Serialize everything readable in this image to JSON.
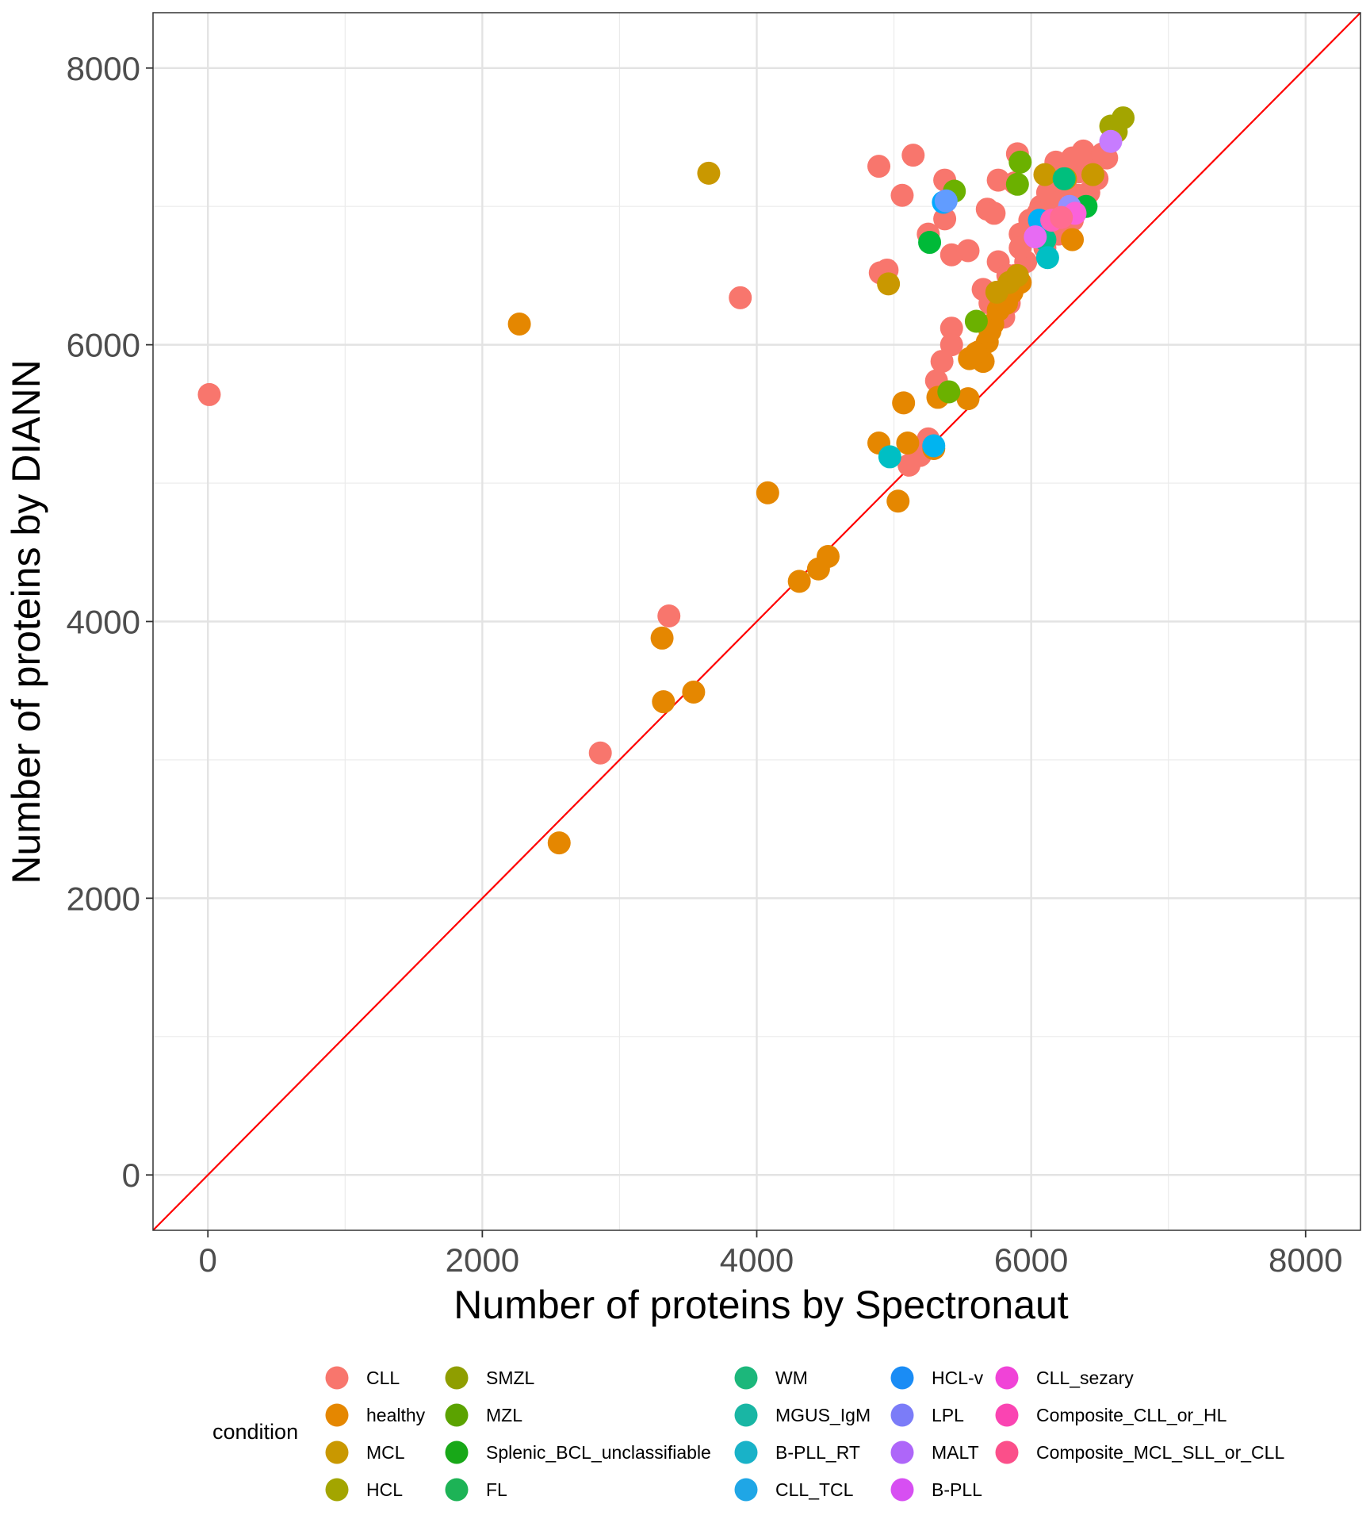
{
  "chart_data": {
    "type": "scatter",
    "xlabel": "Number of proteins by Spectronaut",
    "ylabel": "Number of proteins by DIANN",
    "xlim": [
      -400,
      8400
    ],
    "ylim": [
      -400,
      8400
    ],
    "x_ticks": [
      0,
      2000,
      4000,
      6000,
      8000
    ],
    "y_ticks": [
      0,
      2000,
      4000,
      6000,
      8000
    ],
    "x_tick_labels": [
      "0",
      "2000",
      "4000",
      "6000",
      "8000"
    ],
    "y_tick_labels": [
      "0",
      "2000",
      "4000",
      "6000",
      "8000"
    ],
    "grid": true,
    "reference_line": {
      "type": "identity",
      "color": "#ff0000"
    },
    "legend": {
      "title": "condition",
      "position": "bottom"
    },
    "series": [
      {
        "name": "CLL",
        "color": "#F8766D",
        "points": [
          [
            10,
            5640
          ],
          [
            2860,
            3050
          ],
          [
            3360,
            4040
          ],
          [
            3880,
            6340
          ],
          [
            4890,
            7290
          ],
          [
            5140,
            7370
          ],
          [
            4900,
            6520
          ],
          [
            4950,
            6540
          ],
          [
            5060,
            7080
          ],
          [
            5370,
            7190
          ],
          [
            5250,
            6800
          ],
          [
            5370,
            6910
          ],
          [
            5420,
            6650
          ],
          [
            5420,
            6120
          ],
          [
            5540,
            6680
          ],
          [
            5420,
            6000
          ],
          [
            5350,
            5880
          ],
          [
            5310,
            5740
          ],
          [
            5250,
            5320
          ],
          [
            5110,
            5130
          ],
          [
            5190,
            5200
          ],
          [
            5680,
            6980
          ],
          [
            5730,
            6950
          ],
          [
            5760,
            7190
          ],
          [
            5880,
            7170
          ],
          [
            5900,
            7380
          ],
          [
            5760,
            6600
          ],
          [
            5830,
            6500
          ],
          [
            5700,
            6300
          ],
          [
            5650,
            6400
          ],
          [
            5920,
            6800
          ],
          [
            5990,
            6900
          ],
          [
            6070,
            7000
          ],
          [
            6120,
            7100
          ],
          [
            6180,
            7320
          ],
          [
            6300,
            7350
          ],
          [
            6380,
            7400
          ],
          [
            6450,
            7300
          ],
          [
            6420,
            7100
          ],
          [
            6300,
            6900
          ],
          [
            6200,
            6800
          ],
          [
            6100,
            6700
          ],
          [
            5960,
            6600
          ],
          [
            5880,
            6500
          ],
          [
            5840,
            6300
          ],
          [
            5800,
            6200
          ],
          [
            6000,
            6850
          ],
          [
            6050,
            6950
          ],
          [
            6150,
            7050
          ],
          [
            6250,
            7150
          ],
          [
            6350,
            7250
          ],
          [
            6550,
            7350
          ],
          [
            5920,
            6700
          ],
          [
            6040,
            6780
          ],
          [
            6160,
            6880
          ],
          [
            6260,
            6980
          ],
          [
            6340,
            7080
          ],
          [
            6480,
            7200
          ],
          [
            6520,
            7380
          ]
        ]
      },
      {
        "name": "healthy",
        "color": "#E58700",
        "points": [
          [
            2270,
            6150
          ],
          [
            2560,
            2400
          ],
          [
            3310,
            3880
          ],
          [
            3320,
            3420
          ],
          [
            3540,
            3490
          ],
          [
            4080,
            4930
          ],
          [
            4310,
            4290
          ],
          [
            4450,
            4380
          ],
          [
            4520,
            4470
          ],
          [
            4890,
            5290
          ],
          [
            5030,
            4870
          ],
          [
            5070,
            5580
          ],
          [
            5100,
            5290
          ],
          [
            5290,
            5250
          ],
          [
            5320,
            5620
          ],
          [
            5540,
            5610
          ],
          [
            5550,
            5900
          ],
          [
            5620,
            5950
          ],
          [
            5680,
            6020
          ],
          [
            5720,
            6150
          ],
          [
            5650,
            5880
          ],
          [
            5600,
            5940
          ],
          [
            5780,
            6330
          ],
          [
            5860,
            6380
          ],
          [
            5920,
            6450
          ],
          [
            6300,
            6760
          ],
          [
            5700,
            6100
          ],
          [
            5760,
            6250
          ],
          [
            5820,
            6300
          ]
        ]
      },
      {
        "name": "MCL",
        "color": "#C99800",
        "points": [
          [
            3650,
            7240
          ],
          [
            4960,
            6440
          ],
          [
            5840,
            6450
          ],
          [
            5900,
            6500
          ],
          [
            6100,
            7230
          ],
          [
            6250,
            7200
          ],
          [
            6450,
            7230
          ],
          [
            5750,
            6380
          ]
        ]
      },
      {
        "name": "HCL",
        "color": "#A3A500",
        "points": [
          [
            6580,
            7580
          ],
          [
            6620,
            7540
          ],
          [
            6670,
            7640
          ]
        ]
      },
      {
        "name": "SMZL",
        "color": "#6BB100",
        "points": [
          [
            5440,
            7110
          ],
          [
            5920,
            7320
          ],
          [
            5900,
            7160
          ],
          [
            5600,
            6170
          ],
          [
            5400,
            5660
          ]
        ]
      },
      {
        "name": "MZL",
        "color": "#00BA38",
        "points": [
          [
            5260,
            6740
          ],
          [
            6400,
            7000
          ]
        ]
      },
      {
        "name": "Splenic_BCL_unclassifiable",
        "color": "#00BF7D",
        "points": [
          [
            6240,
            7200
          ]
        ]
      },
      {
        "name": "FL",
        "color": "#00C08B",
        "points": [
          [
            6100,
            6760
          ]
        ]
      },
      {
        "name": "WM",
        "color": "#00BFC4",
        "points": [
          [
            4970,
            5190
          ],
          [
            6120,
            6630
          ]
        ]
      },
      {
        "name": "MGUS_IgM",
        "color": "#00B4F0",
        "points": [
          [
            5290,
            5270
          ]
        ]
      },
      {
        "name": "B-PLL_RT",
        "color": "#00A9FF",
        "points": [
          [
            5360,
            7030
          ]
        ]
      },
      {
        "name": "CLL_TCL",
        "color": "#619CFF",
        "points": [
          [
            5380,
            7040
          ]
        ]
      },
      {
        "name": "HCL-v",
        "color": "#00B0F6",
        "points": [
          [
            6060,
            6900
          ]
        ]
      },
      {
        "name": "LPL",
        "color": "#9590FF",
        "points": [
          [
            6280,
            7000
          ]
        ]
      },
      {
        "name": "MALT",
        "color": "#C77CFF",
        "points": [
          [
            6580,
            7470
          ]
        ]
      },
      {
        "name": "B-PLL",
        "color": "#E76BF3",
        "points": [
          [
            6030,
            6780
          ]
        ]
      },
      {
        "name": "CLL_sezary",
        "color": "#FA62DB",
        "points": [
          [
            6320,
            6950
          ]
        ]
      },
      {
        "name": "Composite_CLL_or_HL",
        "color": "#FF62BC",
        "points": [
          [
            6150,
            6900
          ]
        ]
      },
      {
        "name": "Composite_MCL_SLL_or_CLL",
        "color": "#FF6C91",
        "points": [
          [
            6220,
            6920
          ]
        ]
      }
    ]
  },
  "legend_items": [
    {
      "label": "CLL",
      "color": "#F8766D"
    },
    {
      "label": "healthy",
      "color": "#E58700"
    },
    {
      "label": "MCL",
      "color": "#C99800"
    },
    {
      "label": "HCL",
      "color": "#A3A500"
    },
    {
      "label": "SMZL",
      "color": "#8F9E00"
    },
    {
      "label": "MZL",
      "color": "#5BA300"
    },
    {
      "label": "Splenic_BCL_unclassifiable",
      "color": "#18A818"
    },
    {
      "label": "FL",
      "color": "#1DB356"
    },
    {
      "label": "WM",
      "color": "#1CB77B"
    },
    {
      "label": "MGUS_IgM",
      "color": "#19B6A4"
    },
    {
      "label": "B-PLL_RT",
      "color": "#19B2C8"
    },
    {
      "label": "CLL_TCL",
      "color": "#1FA6E6"
    },
    {
      "label": "HCL-v",
      "color": "#1A8CF5"
    },
    {
      "label": "LPL",
      "color": "#7B7CF8"
    },
    {
      "label": "MALT",
      "color": "#AE66F9"
    },
    {
      "label": "B-PLL",
      "color": "#D74FF2"
    },
    {
      "label": "CLL_sezary",
      "color": "#F043D7"
    },
    {
      "label": "Composite_CLL_or_HL",
      "color": "#FA44B2"
    },
    {
      "label": "Composite_MCL_SLL_or_CLL",
      "color": "#FB4F8A"
    }
  ]
}
